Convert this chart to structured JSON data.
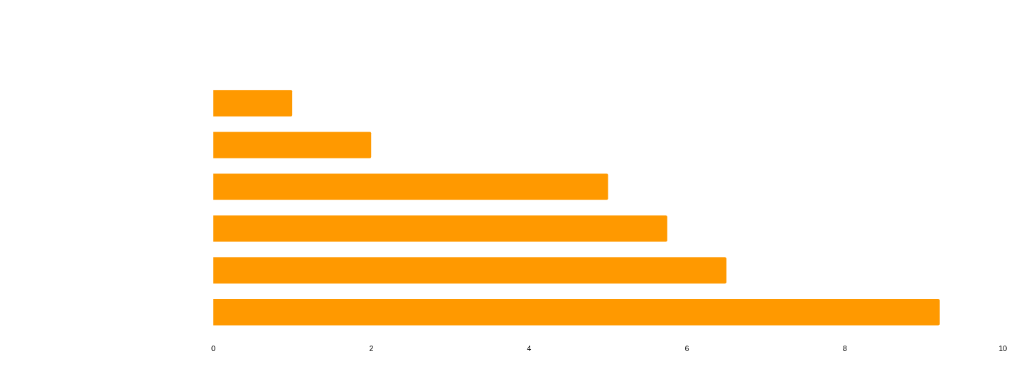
{
  "chart_data": {
    "type": "bar",
    "orientation": "horizontal",
    "categories": [
      null,
      null,
      null,
      null,
      null,
      null
    ],
    "values": [
      1,
      2,
      5,
      5.75,
      6.5,
      9.2
    ],
    "color": "#ff9900",
    "xlim": [
      0,
      10
    ],
    "xticks": [
      0,
      2,
      4,
      6,
      8,
      10
    ]
  }
}
